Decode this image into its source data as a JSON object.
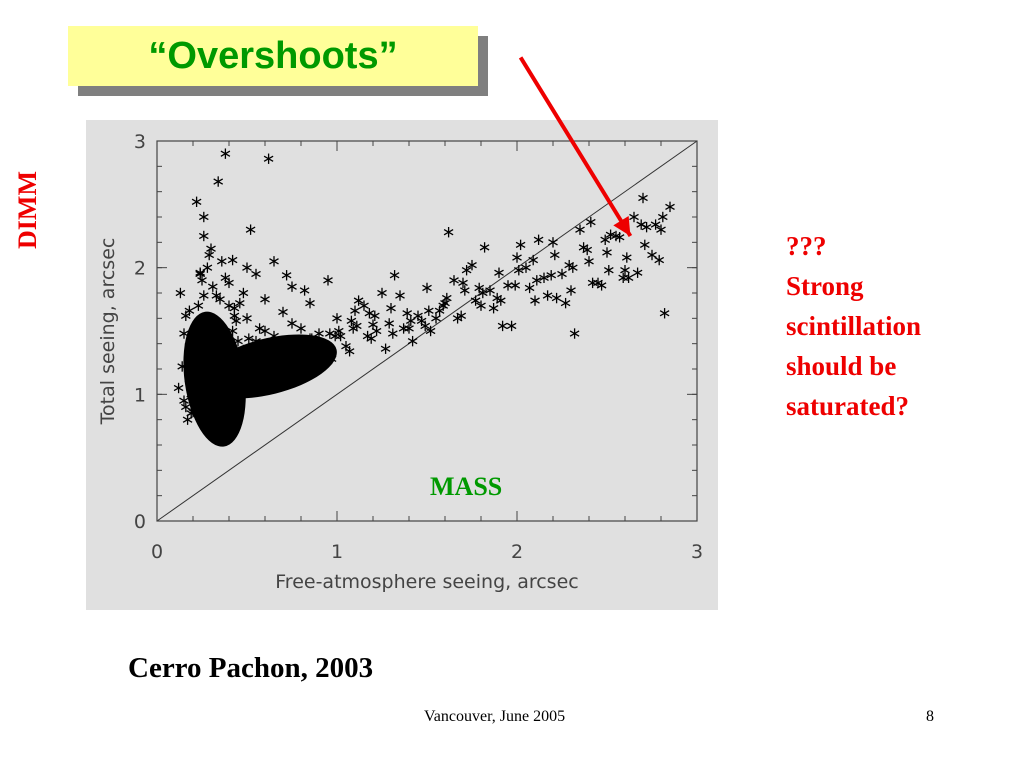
{
  "slide": {
    "title": "“Overshoots”",
    "left_label": "DIMM",
    "mass_label": "MASS",
    "note_lines": [
      "???",
      "Strong",
      "scintillation",
      "should be",
      "saturated?"
    ],
    "caption": "Cerro Pachon, 2003",
    "footer": "Vancouver, June 2005",
    "page_number": "8"
  },
  "colors": {
    "title_text": "#009900",
    "title_background": "#ffff99",
    "accent_red": "#ee0000",
    "mass_green": "#009900",
    "plot_background": "#e0e0e0",
    "marker": "#000000"
  },
  "chart_data": {
    "type": "scatter",
    "xlabel": "Free-atmosphere seeing, arcsec",
    "ylabel": "Total seeing, arcsec",
    "xlim": [
      0,
      3
    ],
    "ylim": [
      0,
      3
    ],
    "xticks": [
      0,
      1,
      2,
      3
    ],
    "yticks": [
      0,
      1,
      2,
      3
    ],
    "marker": "asterisk",
    "reference_line": {
      "x": [
        0,
        3
      ],
      "y": [
        0,
        3
      ]
    },
    "annotation_arrow": {
      "from": [
        2.02,
        3.66
      ],
      "to": [
        2.63,
        2.25
      ]
    },
    "grid": false,
    "legend": "none",
    "points_x": [
      0.12,
      0.15,
      0.18,
      0.2,
      0.22,
      0.25,
      0.28,
      0.3,
      0.32,
      0.35,
      0.38,
      0.4,
      0.42,
      0.45,
      0.48,
      0.5,
      0.13,
      0.16,
      0.19,
      0.21,
      0.24,
      0.27,
      0.29,
      0.33,
      0.36,
      0.39,
      0.43,
      0.47,
      0.52,
      0.55,
      0.58,
      0.6,
      0.14,
      0.17,
      0.23,
      0.26,
      0.31,
      0.34,
      0.37,
      0.41,
      0.44,
      0.46,
      0.49,
      0.53,
      0.56,
      0.62,
      0.65,
      0.68,
      0.15,
      0.18,
      0.22,
      0.26,
      0.3,
      0.35,
      0.4,
      0.45,
      0.5,
      0.55,
      0.6,
      0.65,
      0.7,
      0.75,
      0.8,
      0.85,
      0.2,
      0.25,
      0.3,
      0.35,
      0.4,
      0.5,
      0.6,
      0.7,
      0.8,
      0.9,
      1.0,
      1.05,
      1.1,
      1.15,
      1.2,
      1.25,
      0.28,
      0.33,
      0.38,
      0.43,
      0.48,
      0.55,
      0.65,
      0.75,
      0.85,
      0.95,
      1.02,
      1.08,
      1.12,
      1.18,
      1.22,
      1.3,
      1.35,
      1.4,
      1.45,
      1.5,
      1.55,
      1.6,
      1.65,
      1.7,
      1.75,
      1.8,
      1.85,
      1.9,
      1.95,
      2.0,
      2.05,
      2.1,
      2.15,
      2.2,
      2.25,
      2.3,
      2.35,
      2.4,
      2.45,
      2.5,
      2.55,
      2.6,
      2.65,
      2.7,
      2.75,
      2.8,
      2.85,
      0.22,
      0.26,
      0.3,
      0.34,
      0.38,
      0.18,
      0.2,
      0.24,
      0.28,
      0.32,
      0.36,
      0.52,
      0.62,
      0.72,
      0.82,
      0.92,
      1.32,
      1.42,
      1.52,
      1.62,
      1.72,
      1.82,
      1.92,
      2.02,
      2.12,
      2.22,
      2.32,
      2.42,
      2.52,
      2.62,
      2.72,
      2.82,
      0.16,
      0.21,
      0.27,
      0.42,
      0.57,
      0.67,
      0.77,
      0.87,
      0.97,
      1.07,
      1.17,
      1.27,
      1.37,
      1.47,
      1.57,
      1.67,
      1.77,
      1.87,
      1.97,
      2.07,
      2.17,
      2.27,
      2.37,
      2.47,
      2.57,
      2.67,
      2.77,
      0.25,
      0.31,
      0.36,
      0.41,
      0.46,
      0.51,
      0.66,
      0.71,
      0.76,
      0.81,
      0.86,
      0.91,
      0.96,
      1.01,
      1.11,
      1.21,
      1.31,
      1.41,
      1.51,
      1.61,
      1.71,
      1.81,
      1.91,
      2.01,
      2.11,
      2.21,
      2.31,
      2.41,
      2.51,
      2.61,
      2.71,
      2.81,
      0.19,
      0.29,
      0.39,
      0.59,
      0.69,
      0.79,
      0.89,
      0.99,
      1.09,
      1.19,
      1.29,
      1.39,
      1.49,
      1.59,
      1.69,
      1.79,
      1.89,
      1.99,
      2.09,
      2.19,
      2.29,
      2.39,
      2.49,
      2.59,
      2.69,
      2.79
    ],
    "points_y": [
      1.05,
      0.95,
      1.12,
      1.3,
      0.88,
      1.45,
      1.2,
      1.6,
      0.98,
      1.75,
      1.1,
      1.25,
      1.5,
      0.92,
      1.35,
      1.15,
      1.8,
      1.62,
      0.85,
      1.4,
      1.95,
      1.02,
      2.1,
      1.55,
      0.9,
      1.28,
      1.68,
      1.08,
      1.22,
      1.42,
      1.18,
      1.33,
      1.22,
      0.8,
      1.7,
      2.25,
      1.85,
      1.12,
      1.48,
      0.95,
      1.58,
      1.72,
      1.04,
      1.36,
      1.27,
      1.14,
      1.46,
      1.24,
      1.48,
      1.66,
      1.14,
      2.4,
      1.02,
      1.3,
      1.88,
      1.42,
      1.6,
      1.18,
      1.5,
      1.38,
      1.28,
      1.56,
      1.34,
      1.44,
      0.86,
      1.9,
      2.15,
      1.45,
      1.7,
      2.0,
      1.75,
      1.65,
      1.52,
      1.48,
      1.6,
      1.38,
      1.66,
      1.7,
      1.55,
      1.8,
      2.0,
      1.78,
      1.92,
      1.62,
      1.8,
      1.95,
      2.05,
      1.85,
      1.72,
      1.9,
      1.46,
      1.58,
      1.74,
      1.64,
      1.5,
      1.68,
      1.78,
      1.52,
      1.62,
      1.84,
      1.6,
      1.72,
      1.9,
      1.88,
      2.02,
      1.7,
      1.82,
      1.96,
      1.86,
      2.08,
      2.0,
      1.74,
      1.92,
      2.2,
      1.95,
      1.82,
      2.3,
      2.05,
      1.88,
      2.12,
      2.25,
      1.98,
      2.4,
      2.55,
      2.1,
      2.3,
      2.48,
      2.52,
      1.78,
      0.82,
      2.68,
      2.9,
      1.38,
      1.26,
      1.96,
      0.78,
      1.56,
      2.05,
      2.3,
      2.86,
      1.94,
      1.82,
      1.4,
      1.94,
      1.42,
      1.5,
      2.28,
      1.98,
      2.16,
      1.54,
      2.18,
      2.22,
      1.76,
      1.48,
      1.88,
      2.26,
      1.92,
      2.32,
      1.64,
      0.9,
      1.24,
      1.44,
      2.06,
      1.52,
      1.2,
      1.3,
      1.4,
      1.28,
      1.34,
      1.46,
      1.36,
      1.52,
      1.58,
      1.66,
      1.6,
      1.74,
      1.68,
      1.54,
      1.84,
      1.78,
      1.72,
      2.16,
      1.86,
      2.24,
      1.96,
      2.34,
      1.16,
      1.4,
      1.1,
      1.38,
      1.26,
      1.44,
      1.22,
      1.36,
      1.42,
      1.32,
      1.44,
      1.4,
      1.48,
      1.5,
      1.54,
      1.62,
      1.48,
      1.58,
      1.66,
      1.76,
      1.82,
      1.8,
      1.74,
      1.98,
      1.9,
      2.1,
      2.0,
      2.36,
      1.98,
      2.08,
      2.18,
      2.4,
      1.0,
      1.12,
      1.18,
      1.26,
      1.3,
      1.36,
      1.42,
      1.46,
      1.52,
      1.44,
      1.56,
      1.64,
      1.54,
      1.7,
      1.62,
      1.84,
      1.76,
      1.86,
      2.06,
      1.94,
      2.02,
      2.14,
      2.22,
      1.92,
      2.34,
      2.06
    ]
  }
}
